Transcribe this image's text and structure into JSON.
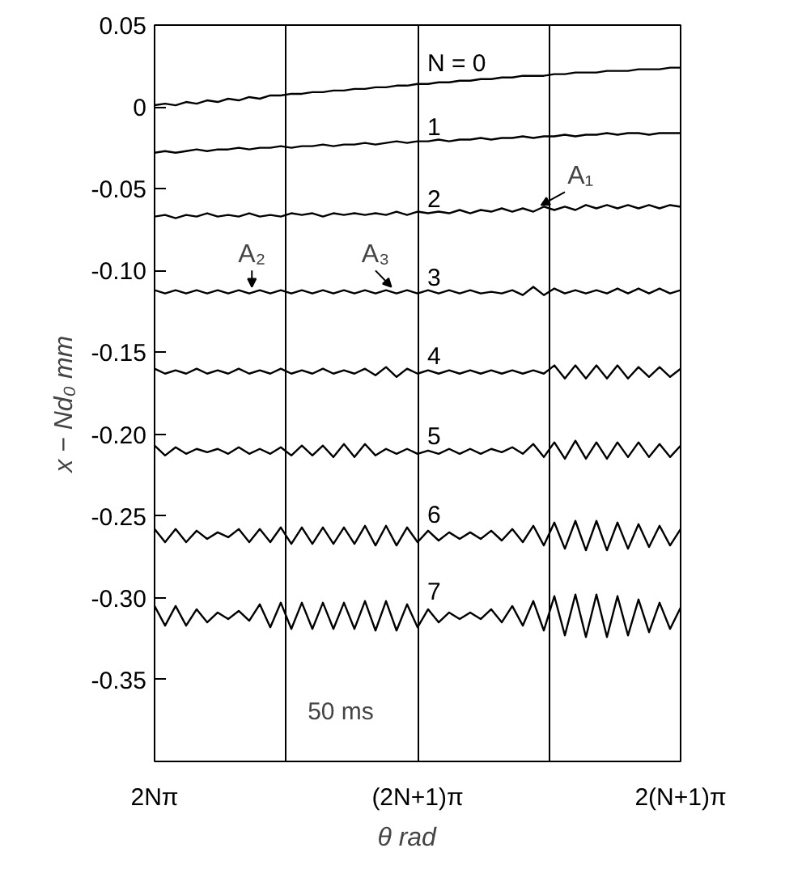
{
  "chart_data": {
    "type": "line",
    "xlabel": "θ    rad",
    "ylabel": "x − Nd₀    mm",
    "categories": [
      "2Nπ",
      null,
      null,
      null,
      null,
      null,
      null,
      null,
      null,
      null,
      null,
      null,
      null,
      null,
      null,
      null,
      null,
      null,
      null,
      null,
      null,
      null,
      null,
      null,
      null,
      "(2N+1)π",
      null,
      null,
      null,
      null,
      null,
      null,
      null,
      null,
      null,
      null,
      null,
      null,
      null,
      null,
      null,
      null,
      null,
      null,
      null,
      null,
      null,
      null,
      null,
      null,
      "2(N+1)π"
    ],
    "ylim": [
      -0.4,
      0.05
    ],
    "yticks": [
      {
        "value": -0.35,
        "label": "-0.35"
      },
      {
        "value": -0.3,
        "label": "-0.30"
      },
      {
        "value": -0.25,
        "label": "-0.25"
      },
      {
        "value": -0.2,
        "label": "-0.20"
      },
      {
        "value": -0.15,
        "label": "-0.15"
      },
      {
        "value": -0.1,
        "label": "-0.10"
      },
      {
        "value": -0.05,
        "label": "-0.05"
      },
      {
        "value": 0,
        "label": "0"
      },
      {
        "value": 0.05,
        "label": "0.05"
      }
    ],
    "grid": "x",
    "marker": "none",
    "line_style": "solid",
    "series": [
      {
        "name": "N = 0",
        "color": "#000000",
        "values": [
          0.001,
          0.002,
          0.001,
          0.003,
          0.002,
          0.004,
          0.003,
          0.005,
          0.004,
          0.006,
          0.005,
          0.007,
          0.007,
          0.008,
          0.008,
          0.009,
          0.009,
          0.01,
          0.01,
          0.011,
          0.011,
          0.012,
          0.012,
          0.013,
          0.013,
          0.014,
          0.014,
          0.015,
          0.015,
          0.016,
          0.016,
          0.017,
          0.017,
          0.018,
          0.018,
          0.019,
          0.019,
          0.019,
          0.02,
          0.02,
          0.021,
          0.021,
          0.021,
          0.022,
          0.022,
          0.022,
          0.023,
          0.023,
          0.023,
          0.024,
          0.024
        ]
      },
      {
        "name": "1",
        "color": "#000000",
        "values": [
          -0.028,
          -0.027,
          -0.028,
          -0.027,
          -0.026,
          -0.027,
          -0.026,
          -0.026,
          -0.025,
          -0.026,
          -0.025,
          -0.025,
          -0.024,
          -0.025,
          -0.024,
          -0.024,
          -0.023,
          -0.024,
          -0.023,
          -0.023,
          -0.022,
          -0.023,
          -0.022,
          -0.021,
          -0.022,
          -0.021,
          -0.021,
          -0.02,
          -0.021,
          -0.02,
          -0.02,
          -0.019,
          -0.02,
          -0.019,
          -0.019,
          -0.018,
          -0.019,
          -0.018,
          -0.018,
          -0.017,
          -0.018,
          -0.017,
          -0.017,
          -0.016,
          -0.017,
          -0.016,
          -0.016,
          -0.017,
          -0.016,
          -0.016,
          -0.016
        ]
      },
      {
        "name": "2",
        "color": "#000000",
        "values": [
          -0.067,
          -0.066,
          -0.068,
          -0.066,
          -0.067,
          -0.065,
          -0.067,
          -0.066,
          -0.067,
          -0.065,
          -0.067,
          -0.066,
          -0.067,
          -0.065,
          -0.066,
          -0.065,
          -0.067,
          -0.065,
          -0.066,
          -0.065,
          -0.066,
          -0.065,
          -0.066,
          -0.064,
          -0.066,
          -0.064,
          -0.065,
          -0.064,
          -0.065,
          -0.063,
          -0.065,
          -0.063,
          -0.064,
          -0.062,
          -0.064,
          -0.062,
          -0.064,
          -0.061,
          -0.063,
          -0.061,
          -0.063,
          -0.06,
          -0.062,
          -0.06,
          -0.062,
          -0.06,
          -0.062,
          -0.06,
          -0.062,
          -0.06,
          -0.061
        ]
      },
      {
        "name": "3",
        "color": "#000000",
        "values": [
          -0.112,
          -0.114,
          -0.112,
          -0.114,
          -0.112,
          -0.114,
          -0.112,
          -0.114,
          -0.112,
          -0.114,
          -0.112,
          -0.114,
          -0.112,
          -0.114,
          -0.112,
          -0.114,
          -0.112,
          -0.114,
          -0.112,
          -0.114,
          -0.112,
          -0.114,
          -0.112,
          -0.114,
          -0.112,
          -0.114,
          -0.112,
          -0.114,
          -0.112,
          -0.114,
          -0.112,
          -0.114,
          -0.113,
          -0.114,
          -0.112,
          -0.115,
          -0.11,
          -0.115,
          -0.111,
          -0.114,
          -0.112,
          -0.114,
          -0.112,
          -0.114,
          -0.111,
          -0.114,
          -0.111,
          -0.114,
          -0.111,
          -0.114,
          -0.112
        ]
      },
      {
        "name": "4",
        "color": "#000000",
        "values": [
          -0.16,
          -0.163,
          -0.161,
          -0.163,
          -0.16,
          -0.163,
          -0.161,
          -0.163,
          -0.16,
          -0.163,
          -0.161,
          -0.163,
          -0.16,
          -0.163,
          -0.161,
          -0.163,
          -0.16,
          -0.163,
          -0.161,
          -0.163,
          -0.16,
          -0.164,
          -0.159,
          -0.165,
          -0.16,
          -0.163,
          -0.161,
          -0.163,
          -0.161,
          -0.163,
          -0.161,
          -0.163,
          -0.161,
          -0.163,
          -0.161,
          -0.163,
          -0.161,
          -0.163,
          -0.158,
          -0.166,
          -0.158,
          -0.166,
          -0.158,
          -0.166,
          -0.158,
          -0.166,
          -0.159,
          -0.165,
          -0.159,
          -0.165,
          -0.16
        ]
      },
      {
        "name": "5",
        "color": "#000000",
        "values": [
          -0.207,
          -0.213,
          -0.208,
          -0.212,
          -0.209,
          -0.211,
          -0.209,
          -0.212,
          -0.208,
          -0.212,
          -0.209,
          -0.212,
          -0.208,
          -0.213,
          -0.207,
          -0.213,
          -0.207,
          -0.214,
          -0.206,
          -0.214,
          -0.206,
          -0.213,
          -0.209,
          -0.212,
          -0.209,
          -0.212,
          -0.21,
          -0.212,
          -0.209,
          -0.212,
          -0.209,
          -0.212,
          -0.209,
          -0.211,
          -0.208,
          -0.212,
          -0.206,
          -0.214,
          -0.205,
          -0.215,
          -0.204,
          -0.215,
          -0.205,
          -0.215,
          -0.205,
          -0.214,
          -0.205,
          -0.214,
          -0.206,
          -0.214,
          -0.207
        ]
      },
      {
        "name": "6",
        "color": "#000000",
        "values": [
          -0.258,
          -0.266,
          -0.258,
          -0.266,
          -0.259,
          -0.264,
          -0.26,
          -0.263,
          -0.258,
          -0.266,
          -0.258,
          -0.266,
          -0.257,
          -0.267,
          -0.257,
          -0.267,
          -0.257,
          -0.267,
          -0.257,
          -0.267,
          -0.256,
          -0.268,
          -0.256,
          -0.268,
          -0.257,
          -0.266,
          -0.259,
          -0.265,
          -0.26,
          -0.264,
          -0.26,
          -0.264,
          -0.259,
          -0.265,
          -0.258,
          -0.266,
          -0.256,
          -0.268,
          -0.254,
          -0.27,
          -0.253,
          -0.271,
          -0.253,
          -0.271,
          -0.254,
          -0.27,
          -0.255,
          -0.269,
          -0.256,
          -0.268,
          -0.258
        ]
      },
      {
        "name": "7",
        "color": "#000000",
        "values": [
          -0.305,
          -0.317,
          -0.305,
          -0.317,
          -0.307,
          -0.315,
          -0.309,
          -0.313,
          -0.308,
          -0.314,
          -0.304,
          -0.318,
          -0.303,
          -0.319,
          -0.303,
          -0.319,
          -0.303,
          -0.319,
          -0.303,
          -0.319,
          -0.302,
          -0.32,
          -0.302,
          -0.32,
          -0.304,
          -0.318,
          -0.307,
          -0.315,
          -0.309,
          -0.313,
          -0.309,
          -0.313,
          -0.307,
          -0.315,
          -0.305,
          -0.317,
          -0.302,
          -0.32,
          -0.299,
          -0.323,
          -0.298,
          -0.324,
          -0.298,
          -0.324,
          -0.299,
          -0.323,
          -0.301,
          -0.321,
          -0.303,
          -0.319,
          -0.306
        ]
      }
    ],
    "annotations": [
      {
        "text": "A₁",
        "y": -0.063
      },
      {
        "text": "A₂",
        "y": -0.113
      },
      {
        "text": "A₃",
        "y": -0.113
      },
      "50 ms"
    ]
  }
}
